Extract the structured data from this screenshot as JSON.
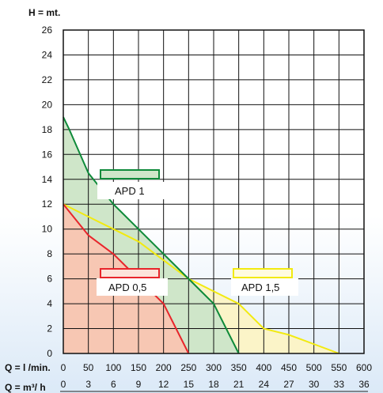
{
  "chart_data": {
    "type": "area",
    "ylabel": "H = mt.",
    "xlabel_primary": "Q = l /min.",
    "xlabel_secondary": "Q = m³/ h",
    "ylim": [
      0,
      26
    ],
    "xlim": [
      0,
      600
    ],
    "y_ticks": [
      0,
      2,
      4,
      6,
      8,
      10,
      12,
      14,
      16,
      18,
      20,
      22,
      24,
      26
    ],
    "x_ticks": [
      0,
      50,
      100,
      150,
      200,
      250,
      300,
      350,
      400,
      450,
      500,
      550,
      600
    ],
    "x2_ticks": [
      "0",
      "3",
      "6",
      "9",
      "12",
      "15",
      "18",
      "21",
      "24",
      "27",
      "30",
      "33",
      "36"
    ],
    "grid": true,
    "series": [
      {
        "name": "APD 0,5",
        "color": "#e8252b",
        "fill": "#f7c7b3",
        "points": [
          [
            0,
            12
          ],
          [
            50,
            9.5
          ],
          [
            100,
            8
          ],
          [
            150,
            6
          ],
          [
            200,
            4
          ],
          [
            250,
            0
          ]
        ]
      },
      {
        "name": "APD 1",
        "color": "#0e8a3a",
        "fill": "#cfe6c9",
        "points": [
          [
            0,
            19
          ],
          [
            12,
            18
          ],
          [
            50,
            14.5
          ],
          [
            100,
            12
          ],
          [
            150,
            10
          ],
          [
            250,
            6
          ],
          [
            300,
            4
          ],
          [
            350,
            0
          ]
        ]
      },
      {
        "name": "APD 1,5",
        "color": "#f2ea10",
        "fill": "#fbf4c8",
        "points": [
          [
            0,
            12
          ],
          [
            50,
            11
          ],
          [
            100,
            10
          ],
          [
            150,
            9
          ],
          [
            200,
            7.5
          ],
          [
            250,
            6
          ],
          [
            300,
            5
          ],
          [
            350,
            4
          ],
          [
            400,
            2
          ],
          [
            450,
            1.5
          ],
          [
            550,
            0
          ]
        ]
      }
    ],
    "legend": [
      {
        "label": "APD 1",
        "series": 1
      },
      {
        "label": "APD 0,5",
        "series": 0
      },
      {
        "label": "APD 1,5",
        "series": 2
      }
    ]
  }
}
